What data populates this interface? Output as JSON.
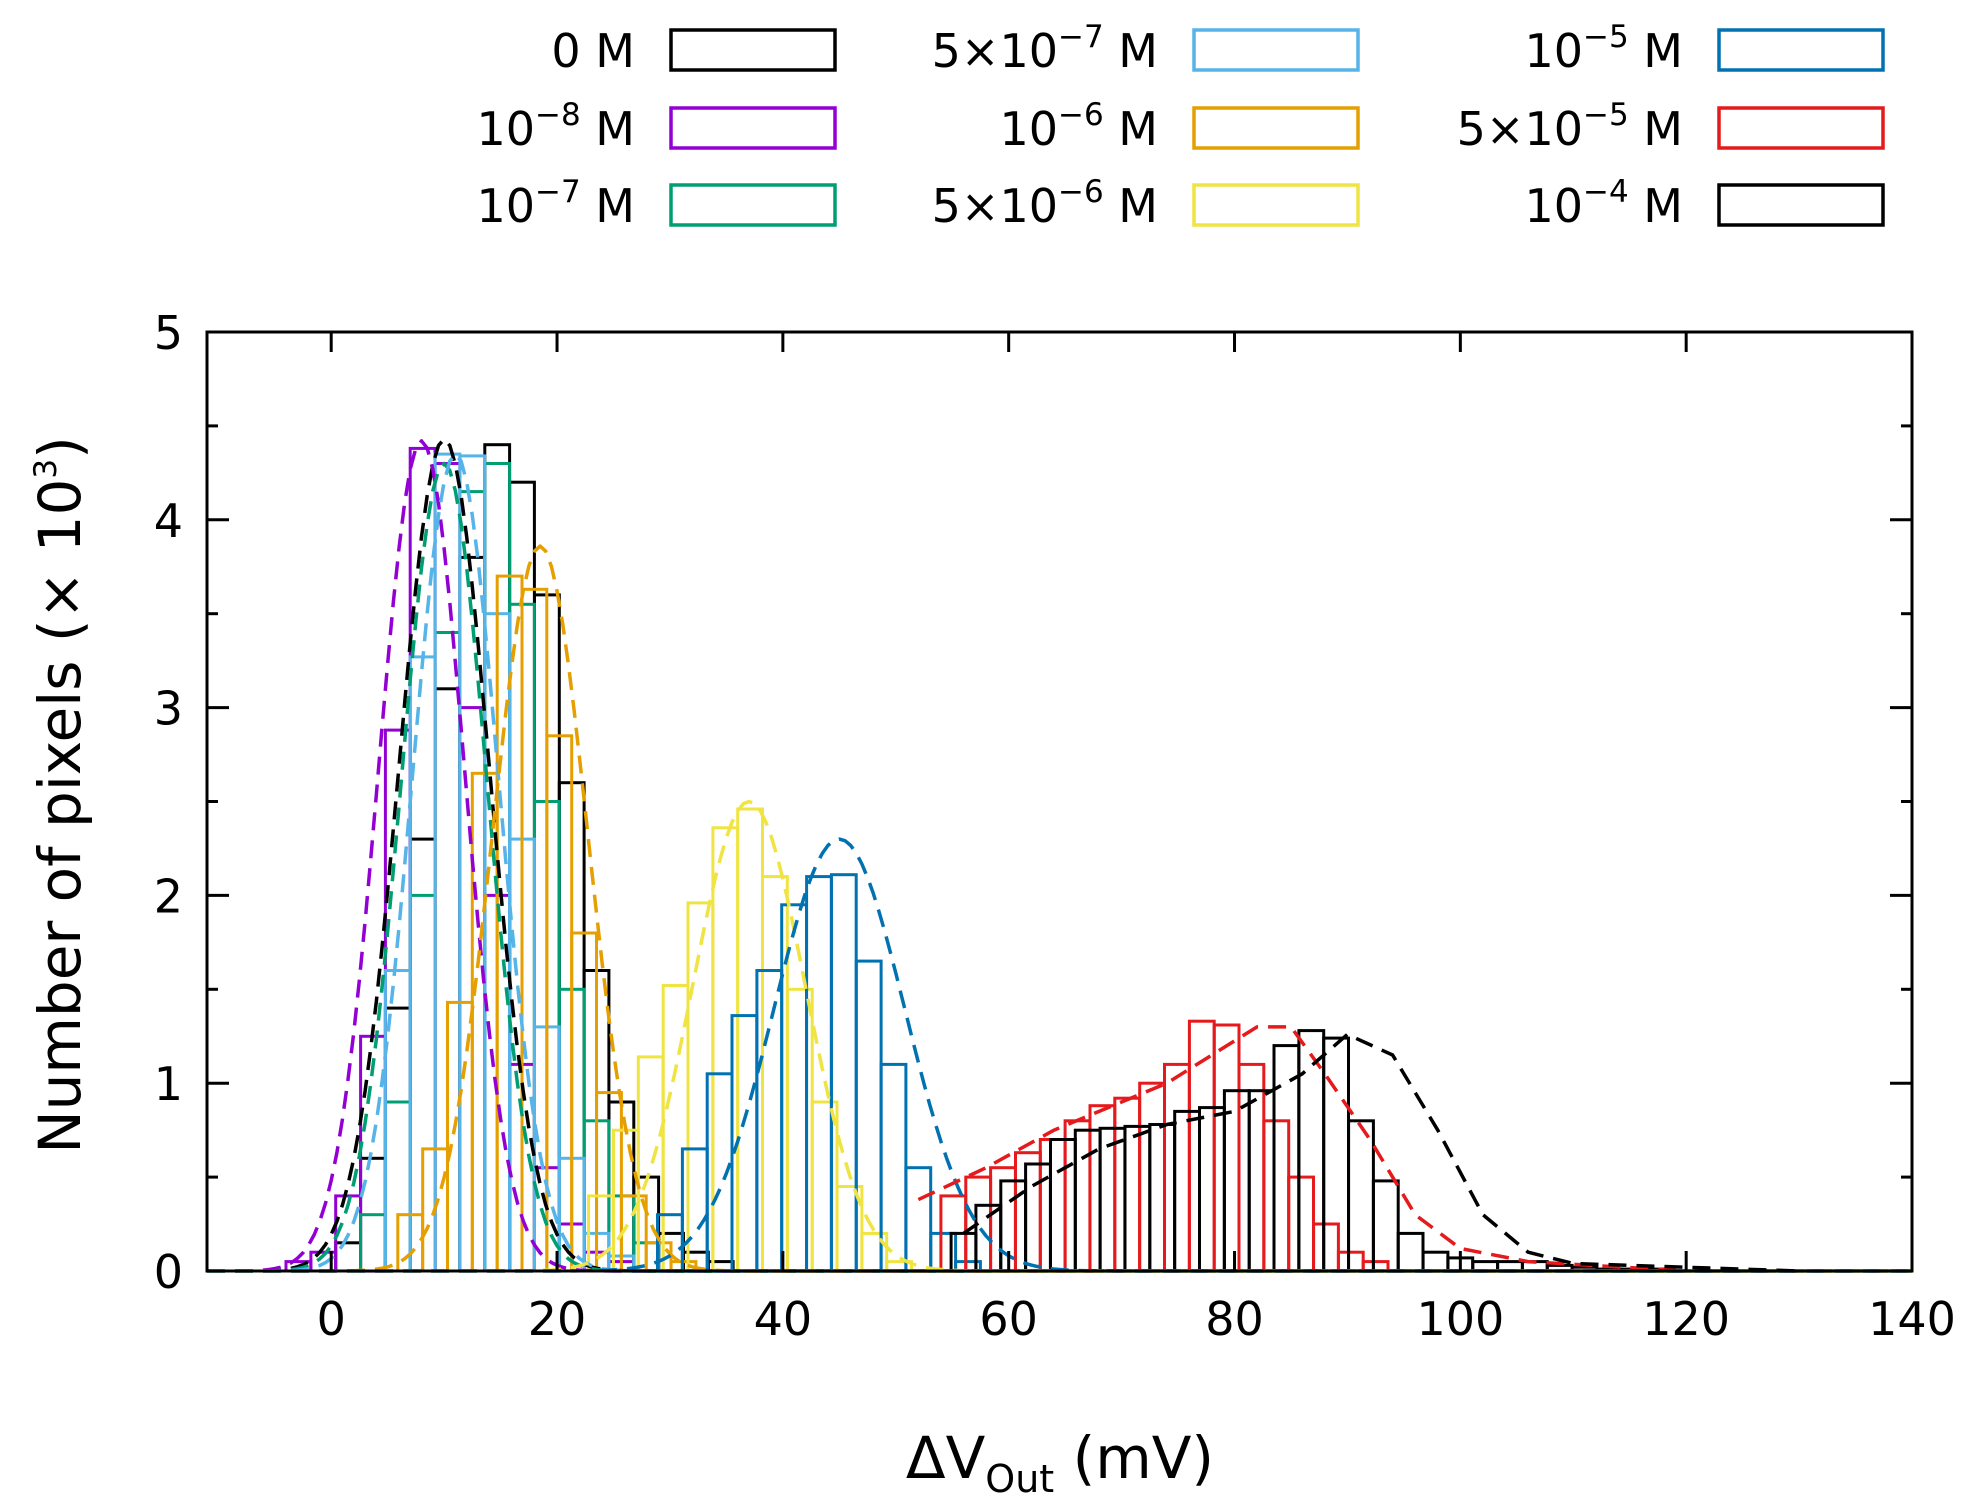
{
  "chart_data": {
    "type": "bar",
    "subtype": "step-histogram with gaussian fits",
    "title": "",
    "xlabel": {
      "prefix": "ΔV",
      "subscript": "Out",
      "suffix": " (mV)"
    },
    "ylabel": {
      "prefix": "Number of pixels (× 10",
      "superscript": "3",
      "suffix": ")"
    },
    "xlim": [
      -11,
      140
    ],
    "ylim": [
      0,
      5
    ],
    "x_ticks": [
      "0",
      "20",
      "40",
      "60",
      "80",
      "100",
      "120",
      "140"
    ],
    "y_ticks": [
      "0",
      "1",
      "2",
      "3",
      "4",
      "5"
    ],
    "bin_width_mV": 2.2,
    "legend_position": "top, above plot, three columns",
    "series": [
      {
        "name": "0 M",
        "color": "#000000",
        "label": {
          "base": "0",
          "exp": "",
          "unit": " M"
        },
        "x_start": 0.4,
        "bin_width": 2.2,
        "counts": [
          0.15,
          0.6,
          1.4,
          2.3,
          3.1,
          3.8,
          4.4,
          4.2,
          3.6,
          2.6,
          1.6,
          0.9,
          0.5,
          0.2,
          0.1,
          0.05
        ],
        "fit": {
          "mu": 10,
          "sigma": 4,
          "amp": 4.43
        }
      },
      {
        "name": "10^-8 M",
        "color": "#9400d3",
        "label": {
          "base": "10",
          "exp": "−8",
          "unit": " M"
        },
        "x_start": -4.0,
        "bin_width": 2.2,
        "counts": [
          0.05,
          0.1,
          0.4,
          1.25,
          2.88,
          4.38,
          4.3,
          3.0,
          2.0,
          1.1,
          0.55,
          0.25,
          0.1,
          0.05
        ],
        "fit": {
          "mu": 8,
          "sigma": 3.8,
          "amp": 4.42
        }
      },
      {
        "name": "10^-7 M",
        "color": "#009e73",
        "label": {
          "base": "10",
          "exp": "−7",
          "unit": " M"
        },
        "x_start": 2.6,
        "bin_width": 2.2,
        "counts": [
          0.3,
          0.9,
          2.0,
          3.4,
          4.15,
          4.3,
          3.55,
          2.5,
          1.5,
          0.8,
          0.4,
          0.15
        ],
        "fit": {
          "mu": 10,
          "sigma": 3.8,
          "amp": 4.3
        }
      },
      {
        "name": "5×10^-7 M",
        "color": "#56b4e9",
        "label": {
          "base": "5×10",
          "exp": "−7",
          "unit": " M"
        },
        "x_start": 4.8,
        "bin_width": 2.2,
        "counts": [
          1.6,
          3.27,
          4.35,
          4.34,
          3.5,
          2.3,
          1.3,
          0.6,
          0.2,
          0.08
        ],
        "fit": {
          "mu": 11,
          "sigma": 3.8,
          "amp": 4.35
        }
      },
      {
        "name": "10^-6 M",
        "color": "#e69f00",
        "label": {
          "base": "10",
          "exp": "−6",
          "unit": " M"
        },
        "x_start": 5.9,
        "bin_width": 2.2,
        "counts": [
          0.3,
          0.65,
          1.43,
          2.65,
          3.7,
          3.63,
          2.85,
          1.8,
          0.95,
          0.4,
          0.15,
          0.05
        ],
        "fit": {
          "mu": 18.5,
          "sigma": 4.2,
          "amp": 3.86
        }
      },
      {
        "name": "5×10^-6 M",
        "color": "#f0e442",
        "label": {
          "base": "5×10",
          "exp": "−6",
          "unit": " M"
        },
        "x_start": 22.8,
        "bin_width": 2.2,
        "counts": [
          0.4,
          0.75,
          1.14,
          1.52,
          1.96,
          2.36,
          2.46,
          2.1,
          1.5,
          0.9,
          0.45,
          0.2,
          0.05
        ],
        "fit": {
          "mu": 37,
          "sigma": 5,
          "amp": 2.5
        }
      },
      {
        "name": "10^-5 M",
        "color": "#0072b2",
        "label": {
          "base": "10",
          "exp": "−5",
          "unit": " M"
        },
        "x_start": 28.9,
        "bin_width": 2.2,
        "counts": [
          0.3,
          0.65,
          1.05,
          1.36,
          1.6,
          1.95,
          2.1,
          2.11,
          1.65,
          1.1,
          0.55,
          0.2,
          0.05
        ],
        "fit": {
          "mu": 45,
          "sigma": 5.8,
          "amp": 2.3
        }
      },
      {
        "name": "5×10^-5 M",
        "color": "#e41a1c",
        "label": {
          "base": "5×10",
          "exp": "−5",
          "unit": " M"
        },
        "x_start": 54.0,
        "bin_width": 2.2,
        "counts": [
          0.4,
          0.5,
          0.55,
          0.63,
          0.7,
          0.8,
          0.88,
          0.92,
          1.0,
          1.1,
          1.33,
          1.31,
          1.1,
          0.8,
          0.5,
          0.25,
          0.1,
          0.05
        ],
        "fit_points": [
          [
            52,
            0.38
          ],
          [
            58,
            0.55
          ],
          [
            64,
            0.75
          ],
          [
            70,
            0.9
          ],
          [
            74,
            1.0
          ],
          [
            78,
            1.15
          ],
          [
            82,
            1.3
          ],
          [
            85,
            1.3
          ],
          [
            88,
            1.05
          ],
          [
            92,
            0.7
          ],
          [
            96,
            0.3
          ],
          [
            100,
            0.12
          ],
          [
            106,
            0.05
          ],
          [
            120,
            0.0
          ]
        ]
      },
      {
        "name": "10^-4 M",
        "color": "#000000",
        "label": {
          "base": "10",
          "exp": "−4",
          "unit": " M"
        },
        "x_start": 54.9,
        "bin_width": 2.2,
        "counts": [
          0.2,
          0.35,
          0.48,
          0.57,
          0.7,
          0.75,
          0.76,
          0.77,
          0.78,
          0.85,
          0.87,
          0.96,
          0.96,
          1.2,
          1.28,
          1.24,
          0.8,
          0.48,
          0.2,
          0.1,
          0.07,
          0.05,
          0.05,
          0.05,
          0.03,
          0.02,
          0.01,
          0.01,
          0.01
        ],
        "fit_points": [
          [
            56,
            0.2
          ],
          [
            62,
            0.45
          ],
          [
            68,
            0.65
          ],
          [
            74,
            0.78
          ],
          [
            80,
            0.85
          ],
          [
            86,
            1.05
          ],
          [
            90,
            1.26
          ],
          [
            94,
            1.15
          ],
          [
            98,
            0.75
          ],
          [
            102,
            0.3
          ],
          [
            106,
            0.1
          ],
          [
            110,
            0.04
          ],
          [
            130,
            0.0
          ]
        ]
      }
    ]
  }
}
